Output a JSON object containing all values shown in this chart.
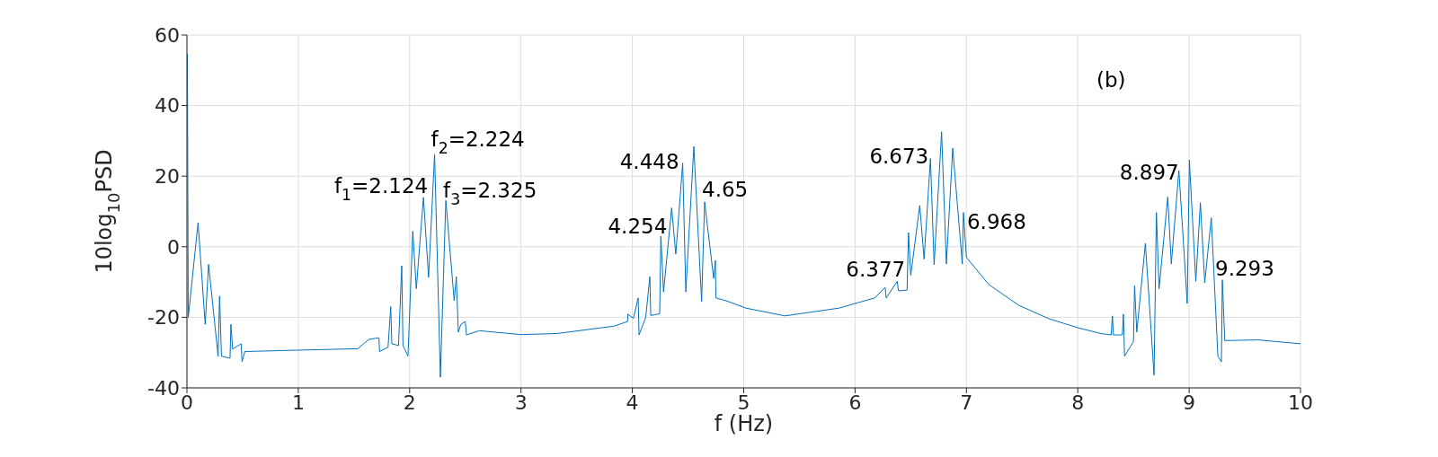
{
  "chart_data": {
    "type": "line",
    "xlabel": "f (Hz)",
    "ylabel": "10log$_{10}$PSD",
    "xlim": [
      0,
      10
    ],
    "xticks": [
      0,
      1,
      2,
      3,
      4,
      5,
      6,
      7,
      8,
      9,
      10
    ],
    "ylim": [
      -40,
      60
    ],
    "yticks": [
      -40,
      -20,
      0,
      20,
      40,
      60
    ],
    "grid": true,
    "marker": "none",
    "line_style": "solid",
    "series": [
      {
        "color": "#0072bd",
        "x": [
          0.004,
          0.012,
          0.1,
          0.164,
          0.194,
          0.28,
          0.293,
          0.31,
          0.387,
          0.395,
          0.41,
          0.487,
          0.495,
          0.52,
          1.01,
          1.536,
          1.63,
          1.724,
          1.73,
          1.806,
          1.83,
          1.84,
          1.9,
          1.929,
          1.94,
          1.985,
          2.028,
          2.06,
          2.124,
          2.17,
          2.224,
          2.276,
          2.325,
          2.4,
          2.419,
          2.437,
          2.46,
          2.5,
          2.51,
          2.626,
          3,
          3.325,
          3.836,
          3.957,
          3.96,
          4.01,
          4.052,
          4.06,
          4.12,
          4.157,
          4.165,
          4.245,
          4.256,
          4.28,
          4.353,
          4.39,
          4.452,
          4.48,
          4.552,
          4.622,
          4.649,
          4.73,
          4.746,
          4.75,
          4.85,
          5.02,
          5.37,
          5.854,
          6.177,
          6.27,
          6.28,
          6.378,
          6.39,
          6.467,
          6.48,
          6.5,
          6.581,
          6.62,
          6.677,
          6.71,
          6.777,
          6.82,
          6.877,
          6.963,
          6.973,
          7,
          7.2,
          7.47,
          7.74,
          8.006,
          8.208,
          8.3,
          8.311,
          8.32,
          8.4,
          8.41,
          8.42,
          8.5,
          8.51,
          8.53,
          8.607,
          8.685,
          8.706,
          8.73,
          8.808,
          8.84,
          8.908,
          8.983,
          9.002,
          9.06,
          9.101,
          9.14,
          9.199,
          9.258,
          9.29,
          9.298,
          9.32,
          9.62,
          10
        ],
        "values": [
          54.7,
          -20,
          6.8,
          -22,
          -5,
          -31,
          -14,
          -31,
          -31.6,
          -22,
          -29,
          -27.5,
          -32.6,
          -29.7,
          -29.3,
          -28.9,
          -26.3,
          -25.8,
          -29.7,
          -28.5,
          -17,
          -27.5,
          -28,
          -5.4,
          -28,
          -31,
          4.4,
          -11.9,
          14,
          -8.7,
          26.2,
          -37,
          13.1,
          -15.3,
          -8.5,
          -24.2,
          -22,
          -21.2,
          -25,
          -23.8,
          -24.9,
          -24.6,
          -22.5,
          -21.2,
          -19.1,
          -20.3,
          -14.5,
          -25,
          -20,
          -8.5,
          -19.5,
          -19,
          3,
          -12.8,
          11,
          -2.1,
          23.7,
          -12.8,
          28.4,
          -15.6,
          12.7,
          -9,
          -3.9,
          -14.5,
          -15.4,
          -17.4,
          -19.6,
          -17.4,
          -14.5,
          -11.5,
          -14.5,
          -9.8,
          -12.5,
          -12.3,
          4,
          -8.1,
          11.7,
          -3.5,
          25,
          -5.1,
          32.6,
          -4.9,
          27.9,
          -4.9,
          9.7,
          -3,
          -10.7,
          -16.6,
          -20.4,
          -23,
          -24.6,
          -25,
          -19.6,
          -25,
          -25,
          -19.1,
          -31,
          -26.9,
          -11.1,
          -24.2,
          0.9,
          -36.4,
          9.7,
          -11.9,
          14.1,
          -4.9,
          21.6,
          -16.1,
          24.6,
          -9.8,
          12.5,
          -10.2,
          8.2,
          -31,
          -32.6,
          -9.4,
          -26.6,
          -26.4,
          -27.5
        ]
      }
    ],
    "annotations": [
      {
        "text": "f$_{1}$=2.124",
        "x": 2.124,
        "y": 14
      },
      {
        "text": "f$_{2}$=2.224",
        "x": 2.224,
        "y": 26.2
      },
      {
        "text": "f$_{3}$=2.325",
        "x": 2.325,
        "y": 13.1
      },
      {
        "text": "4.448",
        "x": 4.452,
        "y": 23.7
      },
      {
        "text": "4.65",
        "x": 4.649,
        "y": 12.7
      },
      {
        "text": "4.254",
        "x": 4.256,
        "y": 3
      },
      {
        "text": "6.673",
        "x": 6.677,
        "y": 25
      },
      {
        "text": "6.968",
        "x": 6.973,
        "y": 9.7
      },
      {
        "text": "6.377",
        "x": 6.378,
        "y": -9.8
      },
      {
        "text": "8.897",
        "x": 8.908,
        "y": 21.6
      },
      {
        "text": "9.293",
        "x": 9.298,
        "y": -9.4
      },
      "(b)"
    ]
  }
}
